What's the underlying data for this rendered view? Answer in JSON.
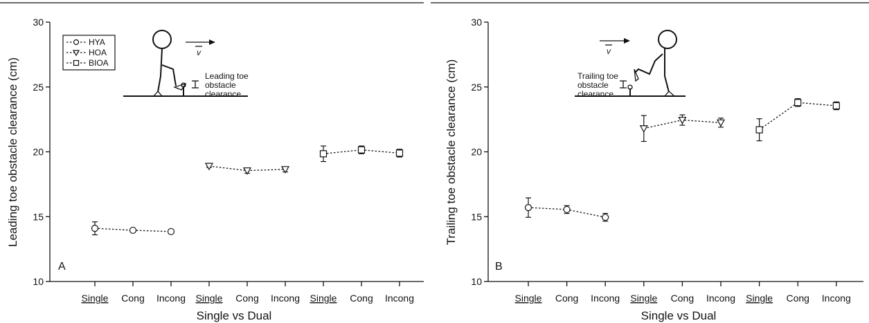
{
  "chart_data": [
    {
      "type": "scatter",
      "panel_label": "A",
      "title": "",
      "xlabel": "Single vs Dual",
      "ylabel": "Leading toe obstacle clearance (cm)",
      "ylim": [
        10,
        30
      ],
      "yticks": [
        10,
        15,
        20,
        25,
        30
      ],
      "categories": [
        "Single",
        "Cong",
        "Incong",
        "Single",
        "Cong",
        "Incong",
        "Single",
        "Cong",
        "Incong"
      ],
      "underlined_categories": [
        0,
        3,
        6
      ],
      "grid": false,
      "legend": {
        "position": "top-left",
        "entries": [
          "HYA",
          "HOA",
          "BIOA"
        ]
      },
      "series": [
        {
          "name": "HYA",
          "marker": "circle",
          "indices": [
            0,
            1,
            2
          ],
          "values": [
            14.1,
            13.95,
            13.85
          ],
          "errors": [
            0.5,
            0.15,
            0.15
          ]
        },
        {
          "name": "HOA",
          "marker": "triangle-down",
          "indices": [
            3,
            4,
            5
          ],
          "values": [
            18.9,
            18.55,
            18.65
          ],
          "errors": [
            0.1,
            0.2,
            0.2
          ]
        },
        {
          "name": "BIOA",
          "marker": "square",
          "indices": [
            6,
            7,
            8
          ],
          "values": [
            19.85,
            20.15,
            19.9
          ],
          "errors": [
            0.6,
            0.3,
            0.3
          ]
        }
      ],
      "annotation": [
        "Leading toe",
        "obstacle",
        "clearance"
      ],
      "velocity_label": "v"
    },
    {
      "type": "scatter",
      "panel_label": "B",
      "title": "",
      "xlabel": "Single vs Dual",
      "ylabel": "Trailing toe obstacle clearance (cm)",
      "ylim": [
        10,
        30
      ],
      "yticks": [
        10,
        15,
        20,
        25,
        30
      ],
      "categories": [
        "Single",
        "Cong",
        "Incong",
        "Single",
        "Cong",
        "Incong",
        "Single",
        "Cong",
        "Incong"
      ],
      "underlined_categories": [
        0,
        3,
        6
      ],
      "grid": false,
      "legend": null,
      "series": [
        {
          "name": "HYA",
          "marker": "circle",
          "indices": [
            0,
            1,
            2
          ],
          "values": [
            15.7,
            15.55,
            14.95
          ],
          "errors": [
            0.75,
            0.3,
            0.3
          ]
        },
        {
          "name": "HOA",
          "marker": "triangle-down",
          "indices": [
            3,
            4,
            5
          ],
          "values": [
            21.8,
            22.45,
            22.25
          ],
          "errors": [
            1.0,
            0.4,
            0.35
          ]
        },
        {
          "name": "BIOA",
          "marker": "square",
          "indices": [
            6,
            7,
            8
          ],
          "values": [
            21.7,
            23.8,
            23.55
          ],
          "errors": [
            0.85,
            0.3,
            0.3
          ]
        }
      ],
      "annotation": [
        "Trailing toe",
        "obstacle",
        "clearance"
      ],
      "velocity_label": "v"
    }
  ]
}
